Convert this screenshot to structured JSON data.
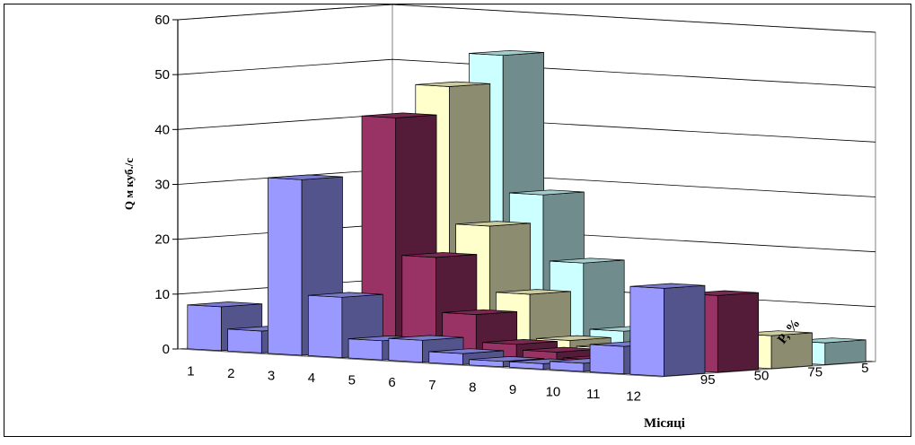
{
  "chart_data": {
    "type": "bar",
    "variant": "3d-column",
    "categories": [
      "1",
      "2",
      "3",
      "4",
      "5",
      "6",
      "7",
      "8",
      "9",
      "10",
      "11",
      "12"
    ],
    "depth_labels": [
      "5",
      "75",
      "50",
      "95"
    ],
    "series": [
      {
        "name": "5",
        "color": "#ccffff",
        "values": [
          0,
          1,
          3,
          53,
          28,
          16,
          4,
          3,
          2,
          1,
          0,
          4
        ]
      },
      {
        "name": "75",
        "color": "#ffffcc",
        "values": [
          0,
          0,
          0,
          48,
          23,
          11,
          3,
          2,
          1.5,
          1,
          0,
          6
        ]
      },
      {
        "name": "50",
        "color": "#993366",
        "values": [
          0,
          4,
          7,
          43,
          18,
          8,
          3,
          2,
          1,
          0,
          0,
          14
        ]
      },
      {
        "name": "95",
        "color": "#9999ff",
        "values": [
          8,
          4,
          32,
          11,
          3.5,
          4,
          2,
          1,
          1,
          1.5,
          5,
          16
        ]
      }
    ],
    "ylabel": "Q м куб./с",
    "xlabel": "Місяці",
    "zlabel": "P, %",
    "ylim": [
      0,
      60
    ],
    "yticks": [
      0,
      10,
      20,
      30,
      40,
      50,
      60
    ],
    "grid": true,
    "legend": "none"
  }
}
